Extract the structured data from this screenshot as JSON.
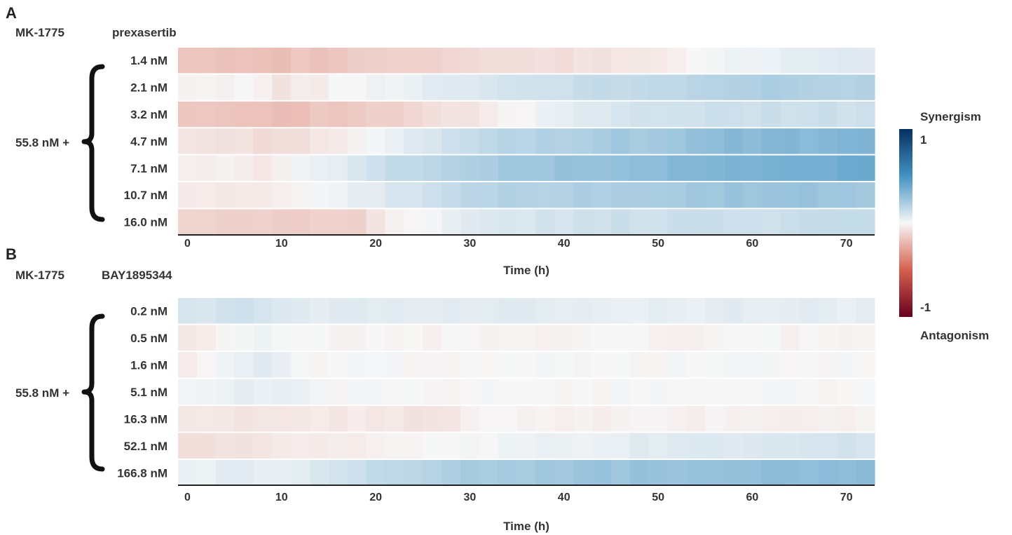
{
  "colorbar": {
    "top_label": "Synergism",
    "bottom_label": "Antagonism",
    "max_label": "1",
    "min_label": "-1",
    "range": [
      -1,
      1
    ],
    "colors": {
      "max": "#053061",
      "mid": "#f7f7f7",
      "min": "#67001f"
    }
  },
  "chart_data": [
    {
      "type": "heatmap",
      "panel": "A",
      "drug_left": "MK-1775",
      "drug_right": "prexasertib",
      "group_label": "55.8 nM +",
      "rows": [
        "1.4 nM",
        "2.1 nM",
        "3.2 nM",
        "4.7 nM",
        "7.1 nM",
        "10.7 nM",
        "16.0 nM"
      ],
      "xlabel": "Time (h)",
      "xticks": [
        0,
        10,
        20,
        30,
        40,
        50,
        60,
        70
      ],
      "xlim": [
        -1,
        73
      ],
      "time_step_h": 2,
      "profiles": [
        [
          [
            0,
            -0.15
          ],
          [
            10,
            -0.18
          ],
          [
            20,
            -0.14
          ],
          [
            30,
            -0.1
          ],
          [
            40,
            -0.08
          ],
          [
            50,
            -0.04
          ],
          [
            60,
            0.03
          ],
          [
            72,
            0.07
          ]
        ],
        [
          [
            0,
            -0.03
          ],
          [
            6,
            0.0
          ],
          [
            10,
            -0.06
          ],
          [
            20,
            0.02
          ],
          [
            30,
            0.08
          ],
          [
            40,
            0.12
          ],
          [
            50,
            0.15
          ],
          [
            60,
            0.2
          ],
          [
            72,
            0.18
          ]
        ],
        [
          [
            0,
            -0.15
          ],
          [
            10,
            -0.18
          ],
          [
            20,
            -0.14
          ],
          [
            30,
            -0.06
          ],
          [
            36,
            0.0
          ],
          [
            40,
            0.05
          ],
          [
            50,
            0.1
          ],
          [
            60,
            0.12
          ],
          [
            72,
            0.12
          ]
        ],
        [
          [
            0,
            -0.06
          ],
          [
            10,
            -0.09
          ],
          [
            20,
            0.0
          ],
          [
            30,
            0.14
          ],
          [
            40,
            0.2
          ],
          [
            50,
            0.24
          ],
          [
            58,
            0.3
          ],
          [
            72,
            0.32
          ]
        ],
        [
          [
            0,
            -0.02
          ],
          [
            8,
            -0.04
          ],
          [
            14,
            0.03
          ],
          [
            20,
            0.12
          ],
          [
            30,
            0.2
          ],
          [
            40,
            0.26
          ],
          [
            50,
            0.3
          ],
          [
            60,
            0.34
          ],
          [
            72,
            0.38
          ]
        ],
        [
          [
            0,
            -0.04
          ],
          [
            6,
            -0.06
          ],
          [
            12,
            0.0
          ],
          [
            20,
            0.06
          ],
          [
            30,
            0.16
          ],
          [
            40,
            0.2
          ],
          [
            50,
            0.22
          ],
          [
            60,
            0.26
          ],
          [
            72,
            0.24
          ]
        ],
        [
          [
            0,
            -0.12
          ],
          [
            10,
            -0.14
          ],
          [
            18,
            -0.12
          ],
          [
            22,
            -0.02
          ],
          [
            30,
            0.06
          ],
          [
            40,
            0.1
          ],
          [
            50,
            0.12
          ],
          [
            60,
            0.12
          ],
          [
            72,
            0.14
          ]
        ]
      ]
    },
    {
      "type": "heatmap",
      "panel": "B",
      "drug_left": "MK-1775",
      "drug_right": "BAY1895344",
      "group_label": "55.8 nM +",
      "rows": [
        "0.2 nM",
        "0.5 nM",
        "1.6 nM",
        "5.1 nM",
        "16.3 nM",
        "52.1 nM",
        "166.8 nM"
      ],
      "xlabel": "Time (h)",
      "xticks": [
        0,
        10,
        20,
        30,
        40,
        50,
        60,
        70
      ],
      "xlim": [
        -1,
        73
      ],
      "time_step_h": 2,
      "profiles": [
        [
          [
            0,
            0.08
          ],
          [
            6,
            0.12
          ],
          [
            10,
            0.06
          ],
          [
            30,
            0.06
          ],
          [
            50,
            0.05
          ],
          [
            72,
            0.05
          ]
        ],
        [
          [
            0,
            -0.06
          ],
          [
            4,
            -0.02
          ],
          [
            8,
            0.02
          ],
          [
            12,
            -0.01
          ],
          [
            40,
            -0.01
          ],
          [
            72,
            -0.01
          ]
        ],
        [
          [
            0,
            -0.03
          ],
          [
            4,
            0.01
          ],
          [
            8,
            0.06
          ],
          [
            12,
            0.0
          ],
          [
            40,
            0.0
          ],
          [
            72,
            0.0
          ]
        ],
        [
          [
            0,
            0.0
          ],
          [
            6,
            0.06
          ],
          [
            10,
            0.04
          ],
          [
            16,
            0.0
          ],
          [
            40,
            0.0
          ],
          [
            72,
            0.0
          ]
        ],
        [
          [
            0,
            -0.06
          ],
          [
            10,
            -0.05
          ],
          [
            20,
            -0.05
          ],
          [
            26,
            -0.07
          ],
          [
            30,
            -0.02
          ],
          [
            40,
            -0.02
          ],
          [
            72,
            -0.02
          ]
        ],
        [
          [
            0,
            -0.08
          ],
          [
            10,
            -0.05
          ],
          [
            20,
            -0.03
          ],
          [
            30,
            0.0
          ],
          [
            40,
            0.03
          ],
          [
            50,
            0.06
          ],
          [
            60,
            0.08
          ],
          [
            72,
            0.1
          ]
        ],
        [
          [
            0,
            0.02
          ],
          [
            6,
            0.06
          ],
          [
            10,
            0.04
          ],
          [
            20,
            0.14
          ],
          [
            30,
            0.22
          ],
          [
            40,
            0.24
          ],
          [
            50,
            0.26
          ],
          [
            60,
            0.28
          ],
          [
            72,
            0.3
          ]
        ]
      ]
    }
  ]
}
